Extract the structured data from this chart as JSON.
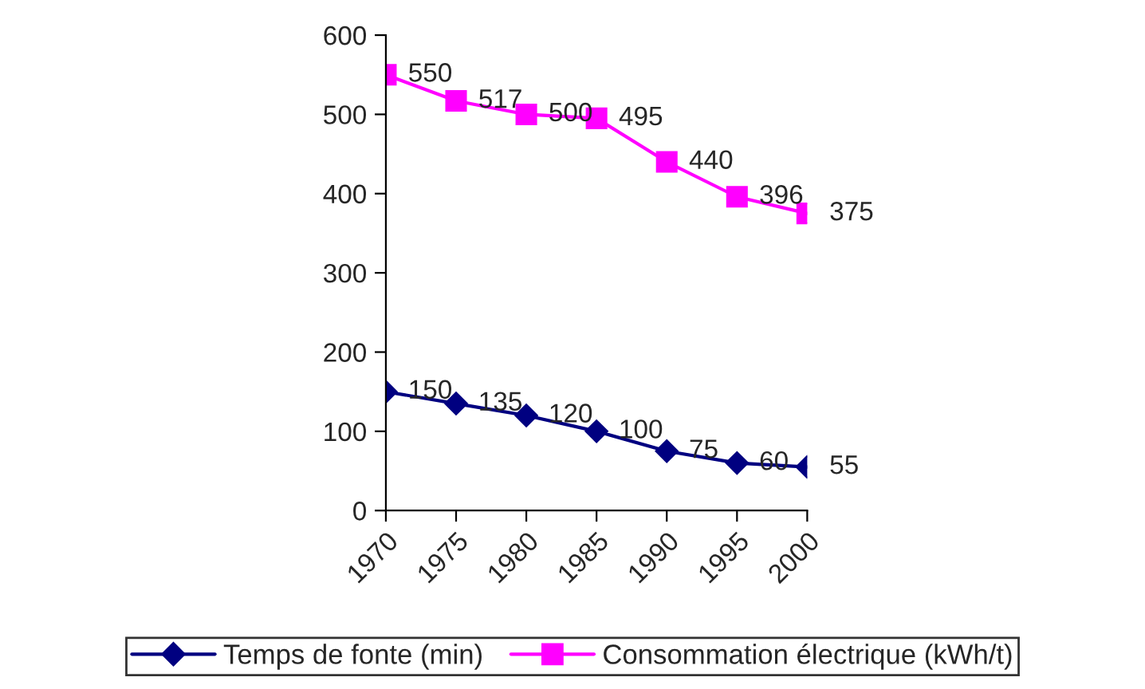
{
  "chart_data": {
    "type": "line",
    "categories": [
      "1970",
      "1975",
      "1980",
      "1985",
      "1990",
      "1995",
      "2000"
    ],
    "series": [
      {
        "name": "Temps de fonte (min)",
        "color": "#000080",
        "marker": "diamond",
        "values": [
          150,
          135,
          120,
          100,
          75,
          60,
          55
        ]
      },
      {
        "name": "Consommation électrique (kWh/t)",
        "color": "#ff00ff",
        "marker": "square",
        "values": [
          550,
          517,
          500,
          495,
          440,
          396,
          375
        ]
      }
    ],
    "ylim": [
      0,
      600
    ],
    "yticks": [
      0,
      100,
      200,
      300,
      400,
      500,
      600
    ],
    "grid": false,
    "legend": "bottom",
    "data_labels": true,
    "line_style": "solid"
  }
}
